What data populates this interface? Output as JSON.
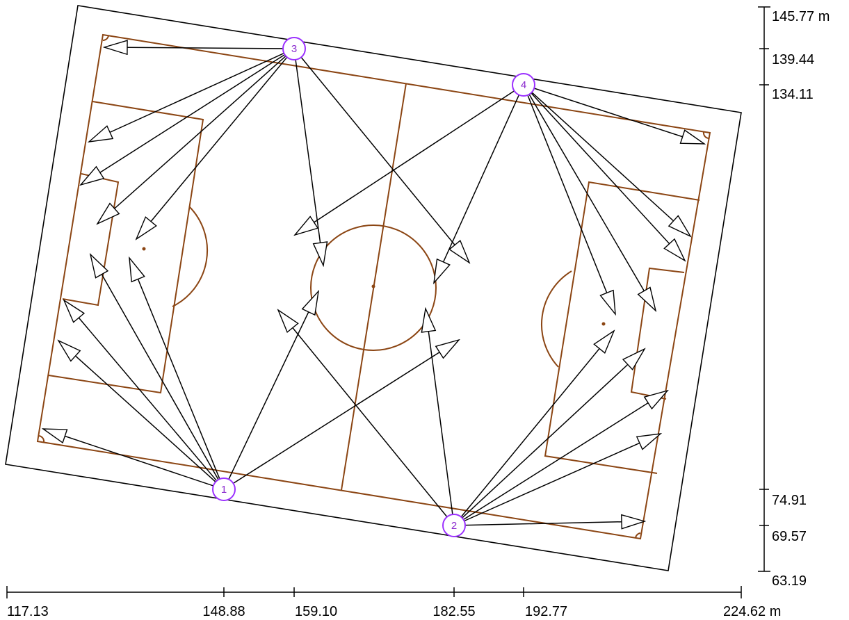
{
  "colors": {
    "field_lines": "#8B4513",
    "arrows": "#000000",
    "poles": "#9B30FF",
    "border": "#000000"
  },
  "poles": [
    {
      "id": "pole-1",
      "label": "1"
    },
    {
      "id": "pole-2",
      "label": "2"
    },
    {
      "id": "pole-3",
      "label": "3"
    },
    {
      "id": "pole-4",
      "label": "4"
    }
  ],
  "x_axis": {
    "ticks": [
      "117.13",
      "148.88",
      "159.10",
      "182.55",
      "192.77",
      "224.62 m"
    ]
  },
  "y_axis": {
    "ticks": [
      "145.77 m",
      "139.44",
      "134.11",
      "74.91",
      "69.57",
      "63.19"
    ]
  }
}
